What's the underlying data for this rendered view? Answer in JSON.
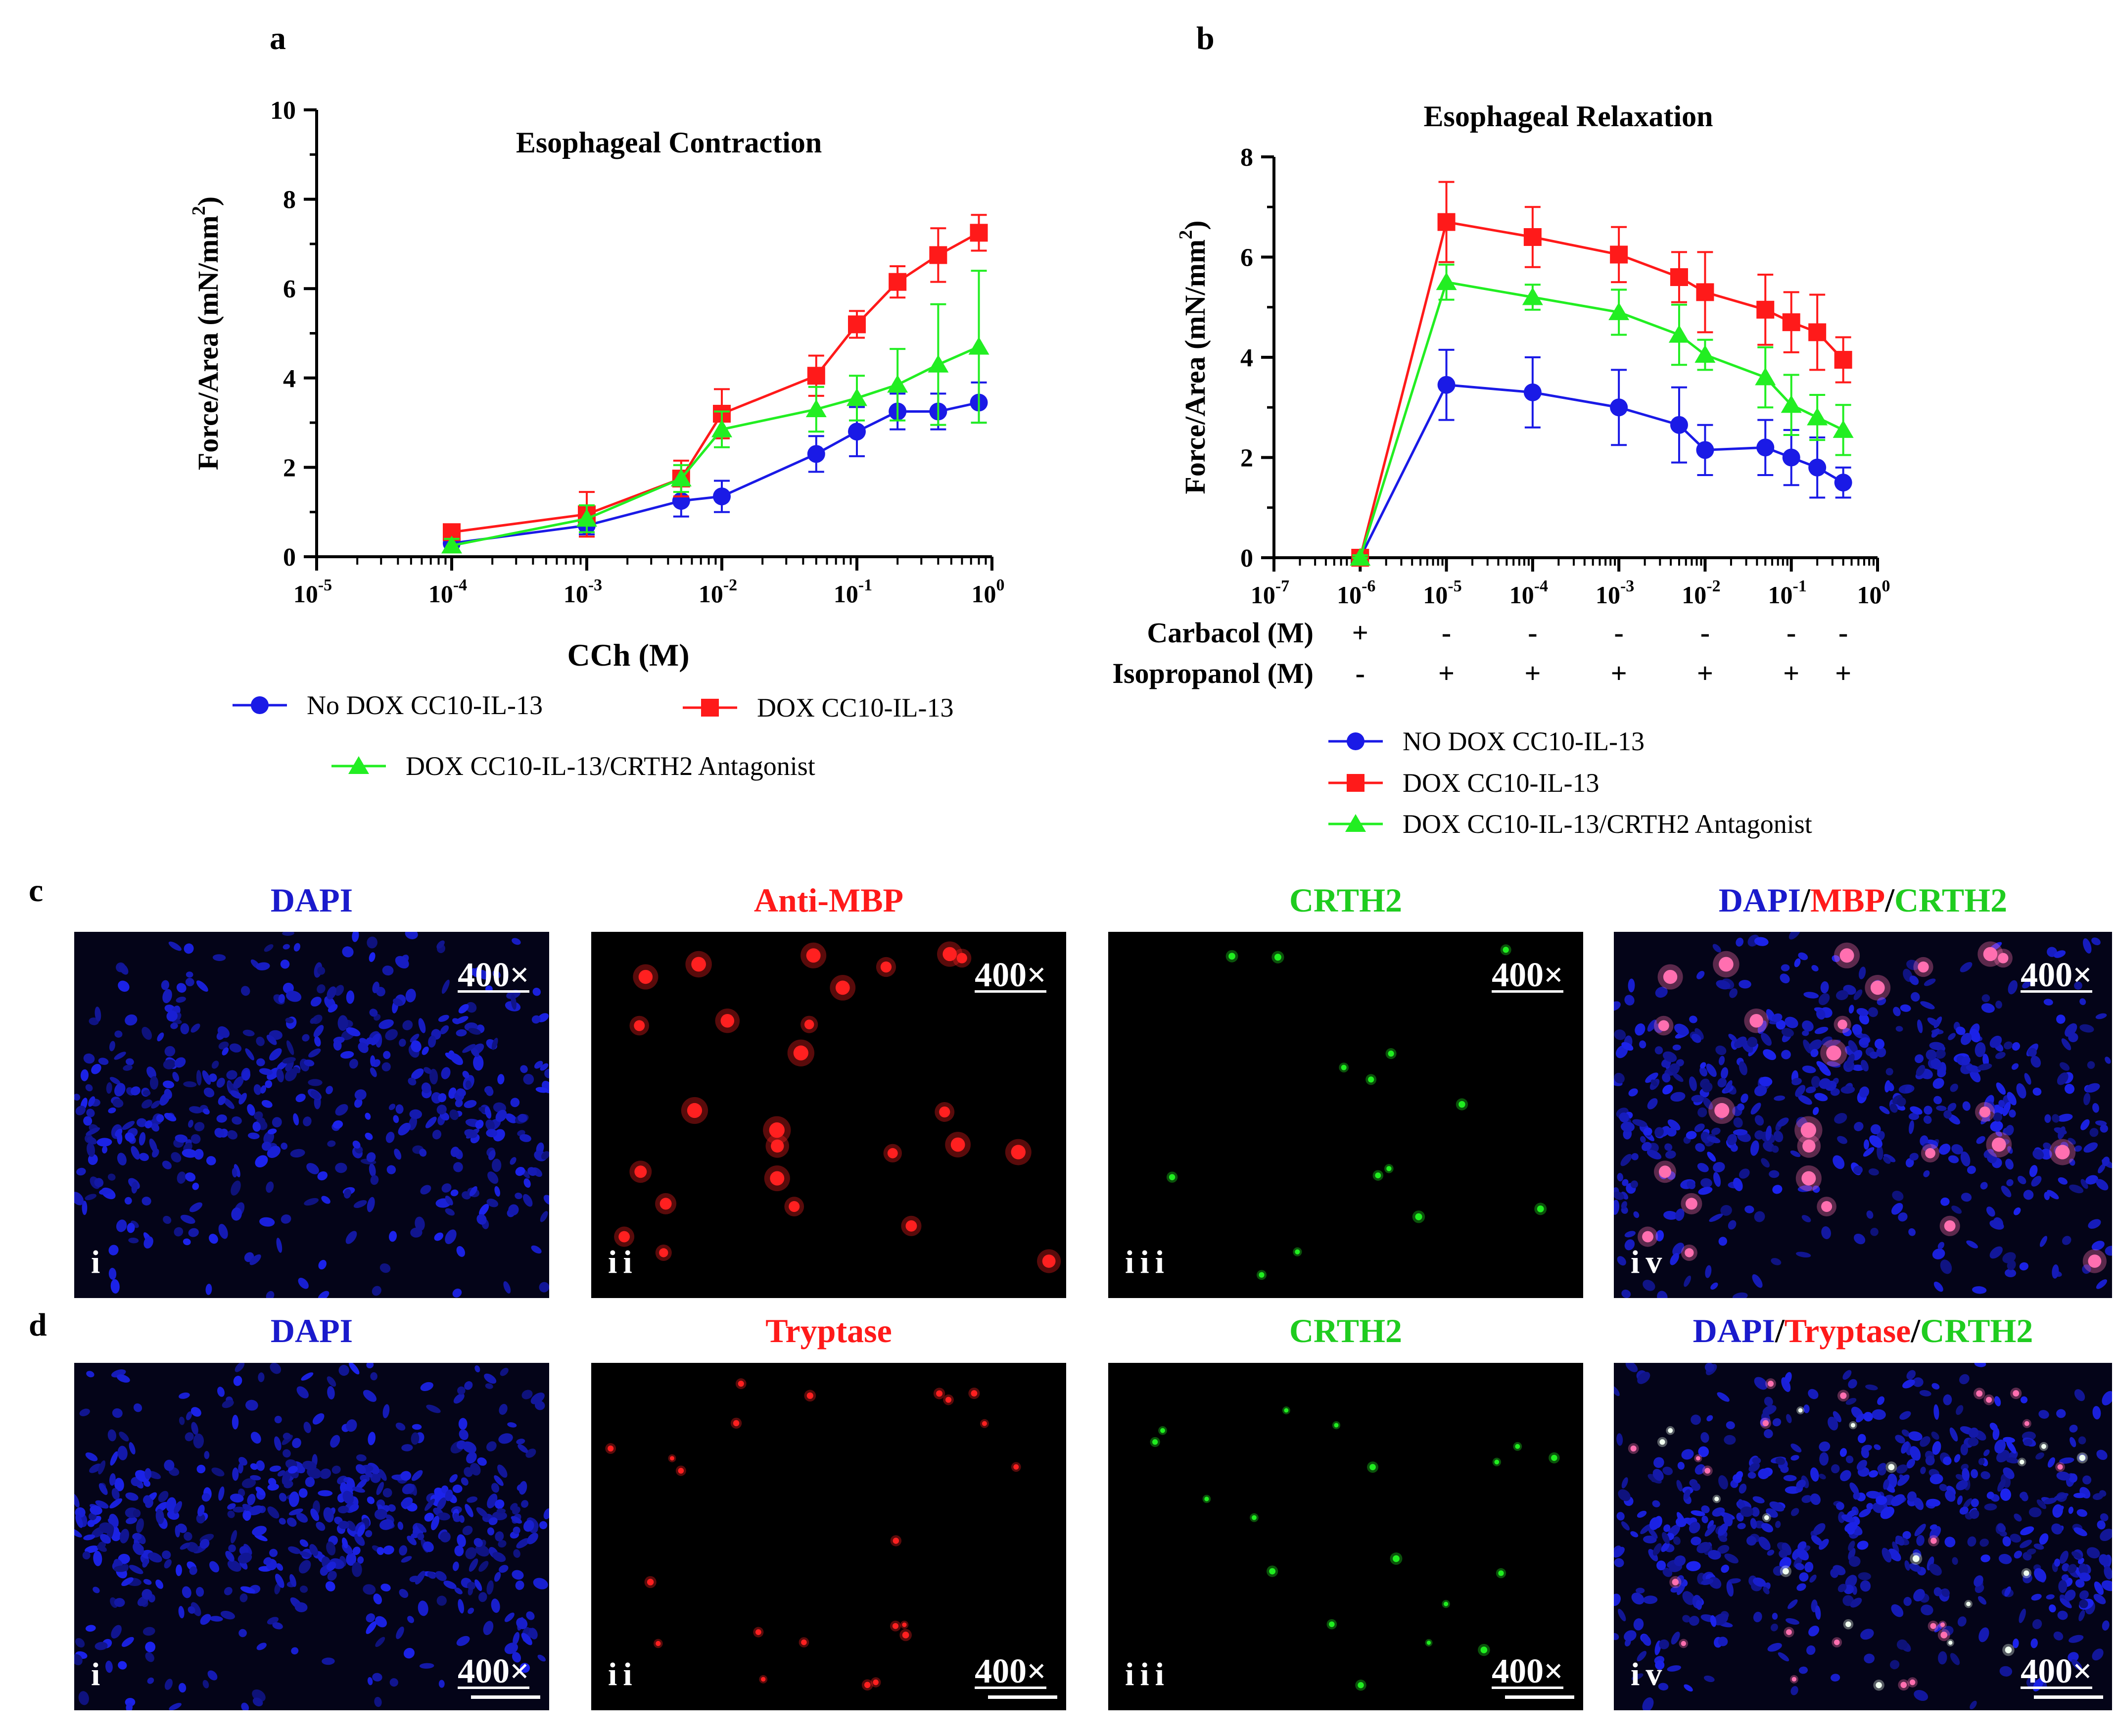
{
  "panels": {
    "a": "a",
    "b": "b",
    "c": "c",
    "d": "d"
  },
  "colors": {
    "blue": "#1a1ae6",
    "red": "#ff1a1a",
    "green": "#22ee22",
    "black": "#000000"
  },
  "chart_data": [
    {
      "type": "line",
      "title": "Esophageal Contraction",
      "xlabel": "CCh (M)",
      "ylabel_main": "Force/Area (mN/mm",
      "ylabel_sup": "2",
      "ylabel_end": ")",
      "xscale": "log",
      "xlim_exp": [
        -5,
        0
      ],
      "x_ticks": [
        {
          "base": "10",
          "exp": "-5"
        },
        {
          "base": "10",
          "exp": "-4"
        },
        {
          "base": "10",
          "exp": "-3"
        },
        {
          "base": "10",
          "exp": "-2"
        },
        {
          "base": "10",
          "exp": "-1"
        },
        {
          "base": "10",
          "exp": "0"
        }
      ],
      "ylim": [
        0,
        10
      ],
      "y_ticks": [
        "0",
        "2",
        "4",
        "6",
        "8",
        "10"
      ],
      "x": [
        0.0001,
        0.001,
        0.005,
        0.01,
        0.05,
        0.1,
        0.2,
        0.4,
        0.8
      ],
      "series": [
        {
          "name": "No DOX CC10-IL-13",
          "color": "#1a1ae6",
          "marker": "circle",
          "values": [
            0.3,
            0.7,
            1.25,
            1.35,
            2.3,
            2.8,
            3.25,
            3.25,
            3.45
          ],
          "errors": [
            0.2,
            0.2,
            0.35,
            0.35,
            0.4,
            0.55,
            0.4,
            0.4,
            0.45
          ]
        },
        {
          "name": "DOX CC10-IL-13",
          "color": "#ff1a1a",
          "marker": "square",
          "values": [
            0.55,
            0.95,
            1.75,
            3.2,
            4.05,
            5.2,
            6.15,
            6.75,
            7.25
          ],
          "errors": [
            0.15,
            0.5,
            0.4,
            0.55,
            0.45,
            0.3,
            0.35,
            0.6,
            0.4
          ]
        },
        {
          "name": "DOX CC10-IL-13/CRTH2 Antagonist",
          "color": "#22ee22",
          "marker": "triangle",
          "values": [
            0.25,
            0.85,
            1.75,
            2.85,
            3.3,
            3.55,
            3.85,
            4.3,
            4.7
          ],
          "errors": [
            0.15,
            0.3,
            0.3,
            0.4,
            0.5,
            0.5,
            0.8,
            1.35,
            1.7
          ]
        }
      ]
    },
    {
      "type": "line",
      "title": "Esophageal Relaxation",
      "ylabel_main": "Force/Area (mN/mm",
      "ylabel_sup": "2",
      "ylabel_end": ")",
      "xscale": "log",
      "xlim_exp": [
        -7,
        0
      ],
      "x_ticks": [
        {
          "base": "10",
          "exp": "-7"
        },
        {
          "base": "10",
          "exp": "-6"
        },
        {
          "base": "10",
          "exp": "-5"
        },
        {
          "base": "10",
          "exp": "-4"
        },
        {
          "base": "10",
          "exp": "-3"
        },
        {
          "base": "10",
          "exp": "-2"
        },
        {
          "base": "10",
          "exp": "-1"
        },
        {
          "base": "10",
          "exp": "0"
        }
      ],
      "ylim": [
        0,
        8
      ],
      "y_ticks": [
        "0",
        "2",
        "4",
        "6",
        "8"
      ],
      "x": [
        1e-06,
        1e-05,
        0.0001,
        0.001,
        0.005,
        0.01,
        0.05,
        0.1,
        0.2,
        0.4
      ],
      "series": [
        {
          "name": "NO DOX CC10-IL-13",
          "color": "#1a1ae6",
          "marker": "circle",
          "values": [
            0,
            3.45,
            3.3,
            3.0,
            2.65,
            2.15,
            2.2,
            2.0,
            1.8,
            1.5
          ],
          "errors": [
            0.05,
            0.7,
            0.7,
            0.75,
            0.75,
            0.5,
            0.55,
            0.55,
            0.6,
            0.3
          ]
        },
        {
          "name": "DOX CC10-IL-13",
          "color": "#ff1a1a",
          "marker": "square",
          "values": [
            0,
            6.7,
            6.4,
            6.05,
            5.6,
            5.3,
            4.95,
            4.7,
            4.5,
            3.95
          ],
          "errors": [
            0.05,
            0.8,
            0.6,
            0.55,
            0.5,
            0.8,
            0.7,
            0.6,
            0.75,
            0.45
          ]
        },
        {
          "name": "DOX CC10-IL-13/CRTH2 Antagonist",
          "color": "#22ee22",
          "marker": "triangle",
          "values": [
            0,
            5.5,
            5.2,
            4.9,
            4.45,
            4.05,
            3.6,
            3.05,
            2.8,
            2.55
          ],
          "errors": [
            0.05,
            0.35,
            0.25,
            0.45,
            0.6,
            0.3,
            0.6,
            0.6,
            0.45,
            0.5
          ]
        }
      ],
      "condition_rows": [
        {
          "label": "Carbacol (M)",
          "marks": [
            "+",
            "-",
            "-",
            "-",
            "-",
            "-",
            "-"
          ]
        },
        {
          "label": "Isopropanol (M)",
          "marks": [
            "-",
            "+",
            "+",
            "+",
            "+",
            "+",
            "+"
          ]
        }
      ],
      "condition_x": [
        1e-06,
        1e-05,
        0.0001,
        0.001,
        0.01,
        0.1,
        0.4
      ]
    }
  ],
  "micrographs": {
    "row_c": {
      "panels": [
        {
          "title": "DAPI",
          "roman": "i",
          "mag": "400×"
        },
        {
          "title": "Anti-MBP",
          "roman": "ii",
          "mag": "400×"
        },
        {
          "title": "CRTH2",
          "roman": "iii",
          "mag": "400×"
        },
        {
          "title_parts": [
            "DAPI",
            "/",
            "MBP",
            "/",
            "CRTH2"
          ],
          "roman": "iv",
          "mag": "400×"
        }
      ]
    },
    "row_d": {
      "panels": [
        {
          "title": "DAPI",
          "roman": "i",
          "mag": "400×"
        },
        {
          "title": "Tryptase",
          "roman": "ii",
          "mag": "400×"
        },
        {
          "title": "CRTH2",
          "roman": "iii",
          "mag": "400×"
        },
        {
          "title_parts": [
            "DAPI",
            "/",
            "Tryptase",
            "/",
            "CRTH2"
          ],
          "roman": "iv",
          "mag": "400×"
        }
      ]
    }
  }
}
